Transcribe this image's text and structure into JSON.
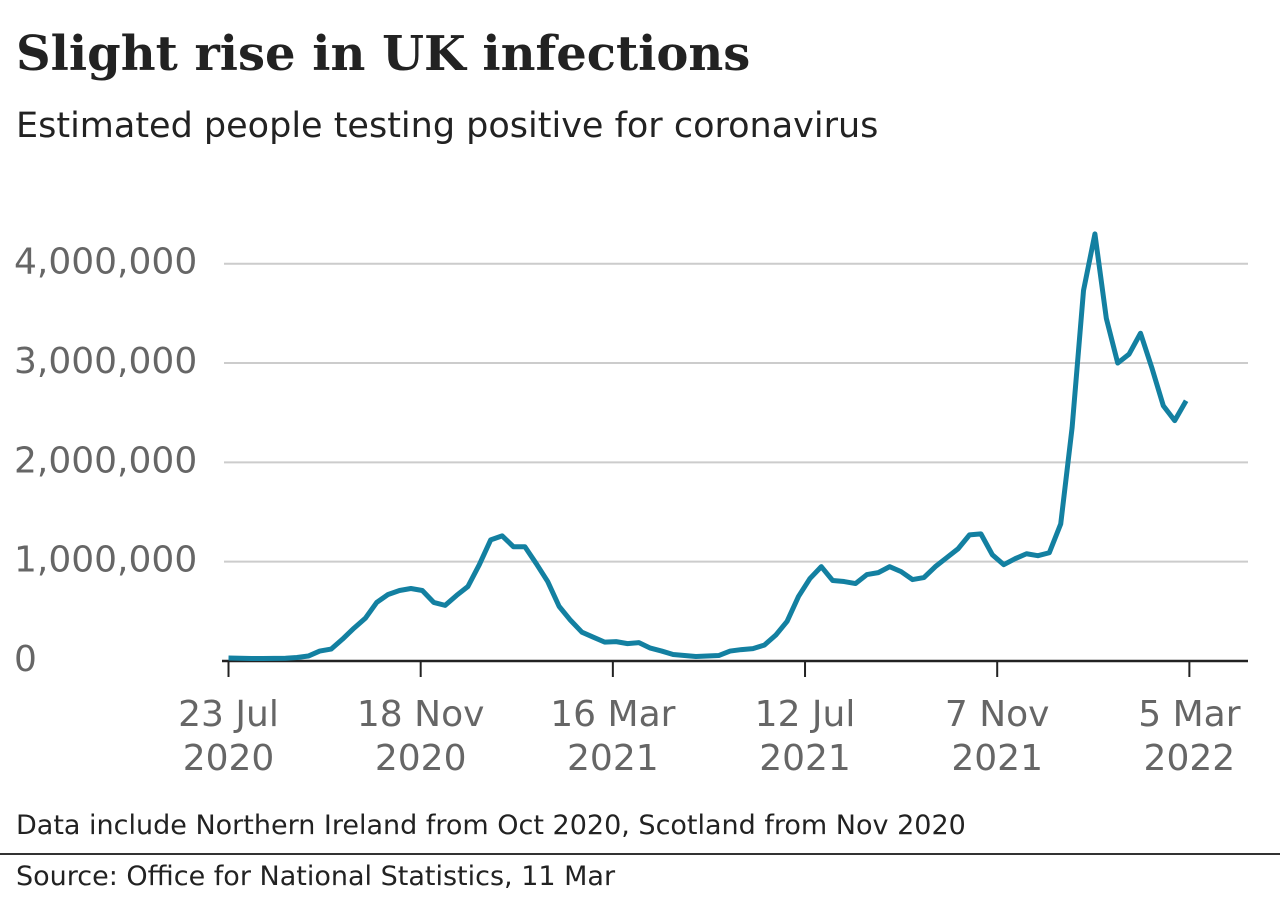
{
  "chart_data": {
    "type": "line",
    "title": "Slight rise in UK infections",
    "subtitle": "Estimated people testing positive for coronavirus",
    "note": "Data include Northern Ireland from Oct 2020, Scotland from Nov 2020",
    "source": "Source: Office for National Statistics, 11 Mar",
    "x": [
      "2020-07-23",
      "2020-07-30",
      "2020-08-06",
      "2020-08-13",
      "2020-08-20",
      "2020-08-27",
      "2020-09-03",
      "2020-09-10",
      "2020-09-17",
      "2020-09-24",
      "2020-10-01",
      "2020-10-08",
      "2020-10-15",
      "2020-10-22",
      "2020-10-29",
      "2020-11-05",
      "2020-11-12",
      "2020-11-19",
      "2020-11-26",
      "2020-12-03",
      "2020-12-10",
      "2020-12-17",
      "2020-12-24",
      "2020-12-31",
      "2021-01-07",
      "2021-01-14",
      "2021-01-21",
      "2021-01-28",
      "2021-02-04",
      "2021-02-11",
      "2021-02-18",
      "2021-02-25",
      "2021-03-04",
      "2021-03-11",
      "2021-03-18",
      "2021-03-25",
      "2021-04-01",
      "2021-04-08",
      "2021-04-15",
      "2021-04-22",
      "2021-04-29",
      "2021-05-06",
      "2021-05-13",
      "2021-05-20",
      "2021-05-27",
      "2021-06-03",
      "2021-06-10",
      "2021-06-17",
      "2021-06-24",
      "2021-07-01",
      "2021-07-08",
      "2021-07-15",
      "2021-07-22",
      "2021-07-29",
      "2021-08-05",
      "2021-08-12",
      "2021-08-19",
      "2021-08-26",
      "2021-09-02",
      "2021-09-09",
      "2021-09-16",
      "2021-09-23",
      "2021-09-30",
      "2021-10-07",
      "2021-10-14",
      "2021-10-21",
      "2021-10-28",
      "2021-11-04",
      "2021-11-11",
      "2021-11-18",
      "2021-11-25",
      "2021-12-02",
      "2021-12-09",
      "2021-12-16",
      "2021-12-23",
      "2021-12-30",
      "2022-01-06",
      "2022-01-13",
      "2022-01-20",
      "2022-01-27",
      "2022-02-03",
      "2022-02-10",
      "2022-02-17",
      "2022-02-24",
      "2022-03-03"
    ],
    "series": [
      {
        "name": "People testing positive",
        "color": "#1380a1",
        "values": [
          30000,
          28000,
          25000,
          25000,
          27000,
          28000,
          35000,
          50000,
          100000,
          120000,
          220000,
          330000,
          430000,
          590000,
          670000,
          710000,
          730000,
          710000,
          590000,
          560000,
          660000,
          750000,
          970000,
          1220000,
          1260000,
          1150000,
          1150000,
          980000,
          800000,
          550000,
          410000,
          290000,
          240000,
          190000,
          195000,
          175000,
          185000,
          130000,
          100000,
          65000,
          55000,
          45000,
          50000,
          55000,
          100000,
          115000,
          125000,
          160000,
          260000,
          400000,
          650000,
          830000,
          950000,
          810000,
          800000,
          780000,
          870000,
          890000,
          950000,
          900000,
          820000,
          840000,
          950000,
          1040000,
          1130000,
          1270000,
          1280000,
          1070000,
          970000,
          1030000,
          1080000,
          1060000,
          1090000,
          1380000,
          2350000,
          3730000,
          4300000,
          3450000,
          3000000,
          3090000,
          3300000,
          2950000,
          2570000,
          2420000,
          2620000
        ]
      }
    ],
    "xlim": [
      "2020-07-19",
      "2022-04-10"
    ],
    "xticks": [
      {
        "value": "2020-07-23",
        "label": "23 Jul 2020"
      },
      {
        "value": "2020-11-18",
        "label": "18 Nov 2020"
      },
      {
        "value": "2021-03-16",
        "label": "16 Mar 2021"
      },
      {
        "value": "2021-07-12",
        "label": "12 Jul 2021"
      },
      {
        "value": "2021-11-07",
        "label": "7 Nov 2021"
      },
      {
        "value": "2022-03-05",
        "label": "5 Mar 2022"
      }
    ],
    "ylim": [
      0,
      4400000
    ],
    "yticks": [
      0,
      {
        "value": 1000000,
        "label": "1,000,000"
      },
      {
        "value": 2000000,
        "label": "2,000,000"
      },
      {
        "value": 3000000,
        "label": "3,000,000"
      },
      {
        "value": 4000000,
        "label": "4,000,000"
      }
    ],
    "grid": true
  }
}
